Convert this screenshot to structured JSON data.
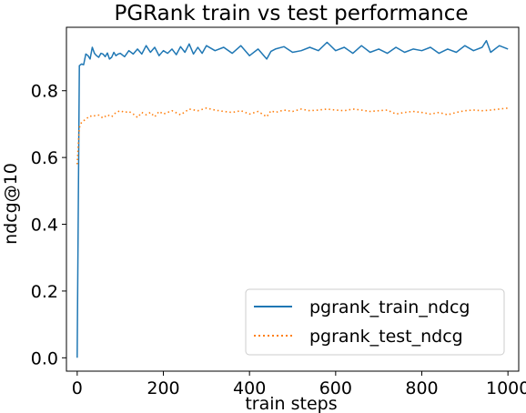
{
  "chart_data": {
    "type": "line",
    "title": "PGRank train vs test performance",
    "xlabel": "train steps",
    "ylabel": "ndcg@10",
    "xlim": [
      -25,
      1025
    ],
    "ylim": [
      -0.04,
      0.99
    ],
    "xticks": [
      0,
      200,
      400,
      600,
      800,
      1000
    ],
    "yticks": [
      0.0,
      0.2,
      0.4,
      0.6,
      0.8
    ],
    "xtick_labels": [
      "0",
      "200",
      "400",
      "600",
      "800",
      "1000"
    ],
    "ytick_labels": [
      "0.0",
      "0.2",
      "0.4",
      "0.6",
      "0.8"
    ],
    "grid": false,
    "legend_position": "lower-right",
    "series": [
      {
        "name": "pgrank_train_ndcg",
        "color": "#1f77b4",
        "style": "solid",
        "x": [
          0,
          5,
          10,
          15,
          20,
          25,
          30,
          35,
          40,
          45,
          50,
          55,
          60,
          65,
          70,
          75,
          80,
          85,
          90,
          95,
          100,
          110,
          120,
          130,
          140,
          150,
          160,
          170,
          180,
          190,
          200,
          210,
          220,
          230,
          240,
          250,
          260,
          270,
          280,
          290,
          300,
          320,
          340,
          360,
          380,
          400,
          420,
          440,
          450,
          460,
          480,
          500,
          520,
          540,
          560,
          580,
          600,
          620,
          640,
          660,
          680,
          700,
          720,
          740,
          760,
          780,
          800,
          820,
          840,
          860,
          880,
          900,
          920,
          940,
          950,
          960,
          980,
          1000
        ],
        "y": [
          0.0,
          0.875,
          0.88,
          0.878,
          0.91,
          0.905,
          0.895,
          0.93,
          0.912,
          0.905,
          0.9,
          0.912,
          0.91,
          0.902,
          0.913,
          0.895,
          0.9,
          0.915,
          0.905,
          0.91,
          0.912,
          0.902,
          0.92,
          0.91,
          0.925,
          0.91,
          0.935,
          0.915,
          0.93,
          0.905,
          0.92,
          0.912,
          0.925,
          0.908,
          0.932,
          0.915,
          0.94,
          0.91,
          0.93,
          0.912,
          0.935,
          0.92,
          0.93,
          0.912,
          0.935,
          0.905,
          0.925,
          0.895,
          0.918,
          0.925,
          0.932,
          0.915,
          0.92,
          0.93,
          0.92,
          0.945,
          0.92,
          0.93,
          0.912,
          0.935,
          0.915,
          0.925,
          0.912,
          0.93,
          0.915,
          0.925,
          0.92,
          0.93,
          0.912,
          0.925,
          0.915,
          0.935,
          0.92,
          0.93,
          0.95,
          0.915,
          0.935,
          0.925
        ]
      },
      {
        "name": "pgrank_test_ndcg",
        "color": "#ff7f0e",
        "style": "dotted",
        "x": [
          0,
          5,
          10,
          15,
          20,
          25,
          30,
          35,
          40,
          50,
          60,
          70,
          80,
          90,
          100,
          110,
          120,
          130,
          140,
          150,
          160,
          170,
          180,
          190,
          200,
          220,
          240,
          260,
          280,
          300,
          320,
          340,
          360,
          380,
          400,
          420,
          440,
          450,
          460,
          480,
          500,
          520,
          540,
          560,
          580,
          600,
          620,
          640,
          660,
          680,
          700,
          720,
          740,
          760,
          780,
          800,
          820,
          840,
          860,
          880,
          900,
          920,
          940,
          960,
          980,
          1000
        ],
        "y": [
          0.58,
          0.69,
          0.705,
          0.71,
          0.715,
          0.72,
          0.725,
          0.722,
          0.725,
          0.727,
          0.718,
          0.728,
          0.722,
          0.735,
          0.74,
          0.735,
          0.738,
          0.73,
          0.72,
          0.735,
          0.728,
          0.735,
          0.722,
          0.738,
          0.73,
          0.74,
          0.728,
          0.745,
          0.74,
          0.748,
          0.742,
          0.738,
          0.735,
          0.74,
          0.73,
          0.738,
          0.722,
          0.74,
          0.735,
          0.742,
          0.738,
          0.745,
          0.74,
          0.742,
          0.745,
          0.742,
          0.74,
          0.745,
          0.742,
          0.738,
          0.74,
          0.742,
          0.73,
          0.735,
          0.738,
          0.735,
          0.73,
          0.735,
          0.728,
          0.735,
          0.74,
          0.742,
          0.74,
          0.742,
          0.745,
          0.748
        ]
      }
    ]
  }
}
